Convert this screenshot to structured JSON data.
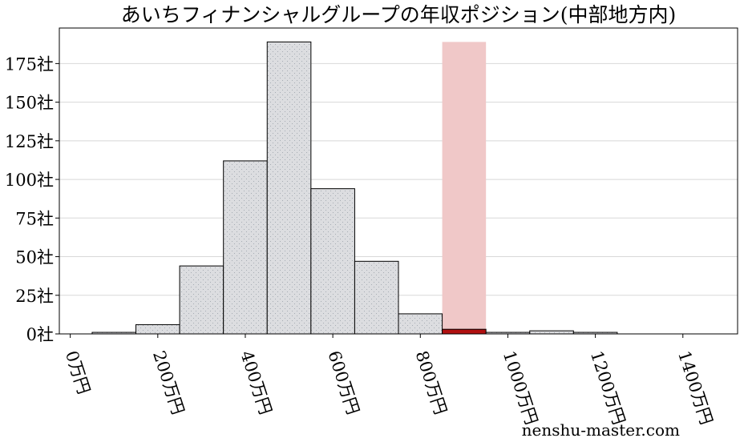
{
  "chart_data": {
    "type": "bar",
    "title": "あいちフィナンシャルグループの年収ポジション(中部地方内)",
    "xlabel": "",
    "ylabel": "",
    "x_ticks": [
      "0万円",
      "200万円",
      "400万円",
      "600万円",
      "800万円",
      "1000万円",
      "1200万円",
      "1400万円"
    ],
    "y_ticks": [
      "0社",
      "25社",
      "50社",
      "75社",
      "100社",
      "125社",
      "150社",
      "175社"
    ],
    "bin_width": 100,
    "bins": [
      {
        "start": 50,
        "end": 150,
        "count": 1
      },
      {
        "start": 150,
        "end": 250,
        "count": 6
      },
      {
        "start": 250,
        "end": 350,
        "count": 44
      },
      {
        "start": 350,
        "end": 450,
        "count": 112
      },
      {
        "start": 450,
        "end": 550,
        "count": 189
      },
      {
        "start": 550,
        "end": 650,
        "count": 94
      },
      {
        "start": 650,
        "end": 750,
        "count": 47
      },
      {
        "start": 750,
        "end": 850,
        "count": 13
      },
      {
        "start": 850,
        "end": 950,
        "count": 3,
        "highlight": true
      },
      {
        "start": 950,
        "end": 1050,
        "count": 1
      },
      {
        "start": 1050,
        "end": 1150,
        "count": 2
      },
      {
        "start": 1150,
        "end": 1250,
        "count": 1
      }
    ],
    "highlight_band": {
      "start": 850,
      "end": 950
    },
    "xlim": [
      -25,
      1525
    ],
    "ylim": [
      0,
      198
    ],
    "y_tick_values": [
      0,
      25,
      50,
      75,
      100,
      125,
      150,
      175
    ],
    "x_tick_values": [
      0,
      200,
      400,
      600,
      800,
      1000,
      1200,
      1400
    ],
    "grid": "horizontal",
    "colors": {
      "bar": "#dcdde0",
      "bar_edge": "#000000",
      "highlight_bar": "#b01010",
      "highlight_band": "#f0c8c8",
      "grid": "#d8d8d8"
    }
  },
  "watermark": "nenshu-master.com"
}
